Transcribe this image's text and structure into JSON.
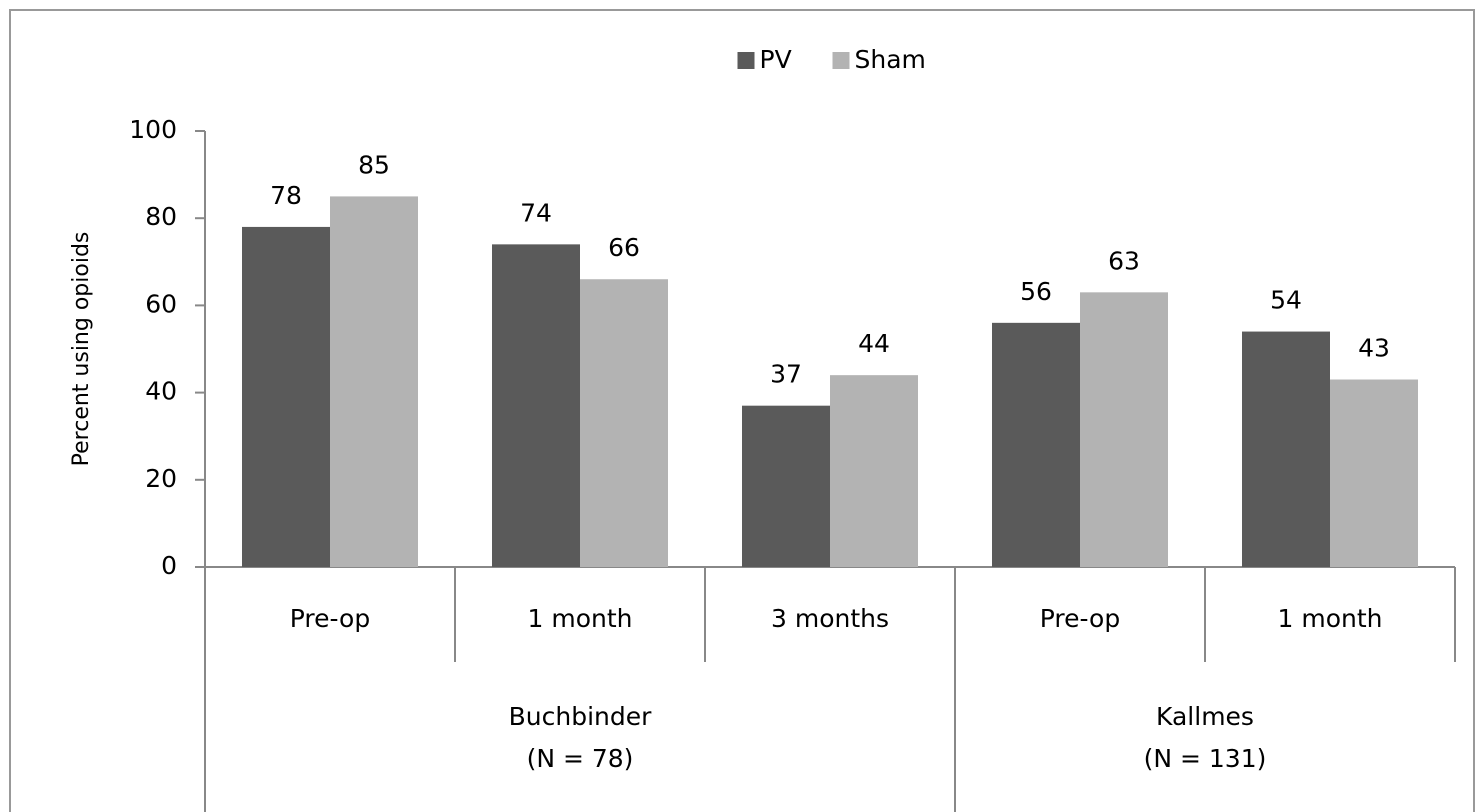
{
  "chart_data": {
    "type": "bar",
    "y_label": "Percent using opioids",
    "groups": [
      {
        "label": [
          "Buchbinder",
          "(N = 78)"
        ],
        "categories": [
          "Pre-op",
          "1 month",
          "3 months"
        ]
      },
      {
        "label": [
          "Kallmes",
          "(N = 131)"
        ],
        "categories": [
          "Pre-op",
          "1 month"
        ]
      }
    ],
    "series": [
      {
        "name": "PV",
        "color": "#5a5a5a",
        "values": [
          78,
          74,
          37,
          56,
          54
        ]
      },
      {
        "name": "Sham",
        "color": "#b3b3b3",
        "values": [
          85,
          66,
          44,
          63,
          43
        ]
      }
    ],
    "ylim": [
      0,
      100
    ],
    "yticks": [
      0,
      20,
      40,
      60,
      80,
      100
    ],
    "legend": "top"
  }
}
